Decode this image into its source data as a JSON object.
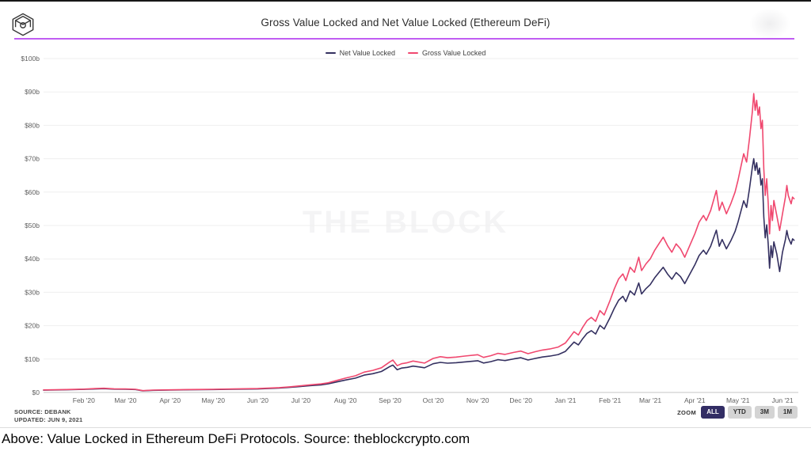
{
  "header": {
    "title": "Gross Value Locked and Net Value Locked (Ethereum DeFi)",
    "accent_color": "#c05df2"
  },
  "watermark": "THE BLOCK",
  "footer": {
    "source_line1": "SOURCE: DEBANK",
    "source_line2": "UPDATED: JUN 9, 2021",
    "zoom_label": "ZOOM",
    "zoom_buttons": [
      {
        "label": "ALL",
        "active": true
      },
      {
        "label": "YTD",
        "active": false
      },
      {
        "label": "3M",
        "active": false
      },
      {
        "label": "1M",
        "active": false
      }
    ]
  },
  "caption": "Above: Value Locked in Ethereum DeFi Protocols. Source: theblockcrypto.com",
  "chart_data": {
    "type": "line",
    "title": "Gross Value Locked and Net Value Locked (Ethereum DeFi)",
    "xlabel": "",
    "ylabel": "",
    "ylim": [
      0,
      100
    ],
    "grid": true,
    "legend_position": "top",
    "x_domain": [
      "2020-01-04",
      "2021-06-12"
    ],
    "y_ticks": [
      {
        "v": 0,
        "label": "$0"
      },
      {
        "v": 10,
        "label": "$10b"
      },
      {
        "v": 20,
        "label": "$20b"
      },
      {
        "v": 30,
        "label": "$30b"
      },
      {
        "v": 40,
        "label": "$40b"
      },
      {
        "v": 50,
        "label": "$50b"
      },
      {
        "v": 60,
        "label": "$60b"
      },
      {
        "v": 70,
        "label": "$70b"
      },
      {
        "v": 80,
        "label": "$80b"
      },
      {
        "v": 90,
        "label": "$90b"
      },
      {
        "v": 100,
        "label": "$100b"
      }
    ],
    "x_ticks": [
      {
        "date": "2020-02-01",
        "label": "Feb '20"
      },
      {
        "date": "2020-03-01",
        "label": "Mar '20"
      },
      {
        "date": "2020-04-01",
        "label": "Apr '20"
      },
      {
        "date": "2020-05-01",
        "label": "May '20"
      },
      {
        "date": "2020-06-01",
        "label": "Jun '20"
      },
      {
        "date": "2020-07-01",
        "label": "Jul '20"
      },
      {
        "date": "2020-08-01",
        "label": "Aug '20"
      },
      {
        "date": "2020-09-01",
        "label": "Sep '20"
      },
      {
        "date": "2020-10-01",
        "label": "Oct '20"
      },
      {
        "date": "2020-11-01",
        "label": "Nov '20"
      },
      {
        "date": "2020-12-01",
        "label": "Dec '20"
      },
      {
        "date": "2021-01-01",
        "label": "Jan '21"
      },
      {
        "date": "2021-02-01",
        "label": "Feb '21"
      },
      {
        "date": "2021-03-01",
        "label": "Mar '21"
      },
      {
        "date": "2021-04-01",
        "label": "Apr '21"
      },
      {
        "date": "2021-05-01",
        "label": "May '21"
      },
      {
        "date": "2021-06-01",
        "label": "Jun '21"
      }
    ],
    "dates": [
      "2020-01-04",
      "2020-01-17",
      "2020-02-01",
      "2020-02-09",
      "2020-02-15",
      "2020-02-22",
      "2020-03-01",
      "2020-03-08",
      "2020-03-13",
      "2020-03-20",
      "2020-04-01",
      "2020-04-15",
      "2020-05-01",
      "2020-05-15",
      "2020-06-01",
      "2020-06-16",
      "2020-06-24",
      "2020-07-01",
      "2020-07-08",
      "2020-07-15",
      "2020-07-20",
      "2020-07-26",
      "2020-08-01",
      "2020-08-08",
      "2020-08-14",
      "2020-08-20",
      "2020-08-26",
      "2020-09-01",
      "2020-09-03",
      "2020-09-06",
      "2020-09-09",
      "2020-09-13",
      "2020-09-17",
      "2020-09-21",
      "2020-09-25",
      "2020-10-01",
      "2020-10-06",
      "2020-10-11",
      "2020-10-17",
      "2020-10-23",
      "2020-11-01",
      "2020-11-05",
      "2020-11-10",
      "2020-11-15",
      "2020-11-20",
      "2020-11-26",
      "2020-12-01",
      "2020-12-06",
      "2020-12-11",
      "2020-12-16",
      "2020-12-21",
      "2020-12-27",
      "2021-01-01",
      "2021-01-04",
      "2021-01-07",
      "2021-01-10",
      "2021-01-13",
      "2021-01-16",
      "2021-01-19",
      "2021-01-22",
      "2021-01-25",
      "2021-01-28",
      "2021-02-01",
      "2021-02-04",
      "2021-02-07",
      "2021-02-10",
      "2021-02-12",
      "2021-02-15",
      "2021-02-18",
      "2021-02-21",
      "2021-02-23",
      "2021-02-26",
      "2021-03-01",
      "2021-03-04",
      "2021-03-07",
      "2021-03-10",
      "2021-03-13",
      "2021-03-16",
      "2021-03-19",
      "2021-03-22",
      "2021-03-25",
      "2021-03-28",
      "2021-04-01",
      "2021-04-04",
      "2021-04-07",
      "2021-04-09",
      "2021-04-12",
      "2021-04-14",
      "2021-04-16",
      "2021-04-18",
      "2021-04-20",
      "2021-04-23",
      "2021-04-26",
      "2021-04-29",
      "2021-05-01",
      "2021-05-03",
      "2021-05-05",
      "2021-05-07",
      "2021-05-09",
      "2021-05-11",
      "2021-05-12",
      "2021-05-13",
      "2021-05-14",
      "2021-05-15",
      "2021-05-16",
      "2021-05-17",
      "2021-05-18",
      "2021-05-19",
      "2021-05-20",
      "2021-05-21",
      "2021-05-22",
      "2021-05-23",
      "2021-05-24",
      "2021-05-25",
      "2021-05-26",
      "2021-05-28",
      "2021-05-30",
      "2021-06-01",
      "2021-06-03",
      "2021-06-04",
      "2021-06-05",
      "2021-06-07",
      "2021-06-08",
      "2021-06-09"
    ],
    "series": [
      {
        "name": "Net Value Locked",
        "color": "#343060",
        "values": [
          0.68,
          0.78,
          0.92,
          1.05,
          1.13,
          1.0,
          0.95,
          0.87,
          0.5,
          0.64,
          0.71,
          0.8,
          0.87,
          0.96,
          1.05,
          1.3,
          1.53,
          1.8,
          2.06,
          2.28,
          2.58,
          3.15,
          3.72,
          4.3,
          5.2,
          5.62,
          6.28,
          7.8,
          8.2,
          6.8,
          7.3,
          7.52,
          7.9,
          7.66,
          7.4,
          8.6,
          9.0,
          8.76,
          8.92,
          9.14,
          9.5,
          8.82,
          9.22,
          9.8,
          9.56,
          10.05,
          10.4,
          9.72,
          10.2,
          10.62,
          10.88,
          11.36,
          12.3,
          13.7,
          15.1,
          14.25,
          16.1,
          17.7,
          18.5,
          17.5,
          20.1,
          19.0,
          22.4,
          25.2,
          27.6,
          28.8,
          27.2,
          30.4,
          29.2,
          32.8,
          29.5,
          31.1,
          32.3,
          34.3,
          35.9,
          37.5,
          35.5,
          33.9,
          35.9,
          34.7,
          32.6,
          35.0,
          38.2,
          41.0,
          42.6,
          41.4,
          43.8,
          46.2,
          48.6,
          43.8,
          45.8,
          43.0,
          45.4,
          48.2,
          51.0,
          54.2,
          57.4,
          55.4,
          61.0,
          67.4,
          70.0,
          66.5,
          68.8,
          65.3,
          67.2,
          62.1,
          64.0,
          52.6,
          46.3,
          50.2,
          44.7,
          37.2,
          43.9,
          40.4,
          45.1,
          41.5,
          36.2,
          42.0,
          45.8,
          48.5,
          46.4,
          44.4,
          46.0,
          45.6
        ]
      },
      {
        "name": "Gross Value Locked",
        "color": "#f0486f",
        "values": [
          0.75,
          0.85,
          1.0,
          1.15,
          1.25,
          1.1,
          1.05,
          0.95,
          0.55,
          0.7,
          0.78,
          0.88,
          0.95,
          1.05,
          1.15,
          1.45,
          1.7,
          2.0,
          2.3,
          2.55,
          2.9,
          3.6,
          4.3,
          5.0,
          6.1,
          6.6,
          7.4,
          9.2,
          9.7,
          8.0,
          8.6,
          8.9,
          9.4,
          9.1,
          8.8,
          10.2,
          10.7,
          10.4,
          10.6,
          10.9,
          11.3,
          10.5,
          11.0,
          11.7,
          11.4,
          12.0,
          12.4,
          11.6,
          12.2,
          12.7,
          13.0,
          13.6,
          14.8,
          16.5,
          18.2,
          17.2,
          19.5,
          21.5,
          22.5,
          21.3,
          24.5,
          23.2,
          27.5,
          31.0,
          34.0,
          35.5,
          33.5,
          37.5,
          36.0,
          40.5,
          36.5,
          38.5,
          40.0,
          42.5,
          44.5,
          46.5,
          44.0,
          42.0,
          44.5,
          43.0,
          40.5,
          43.5,
          47.5,
          51.0,
          53.0,
          51.5,
          54.5,
          57.5,
          60.5,
          54.5,
          57.0,
          53.5,
          56.5,
          60.0,
          63.5,
          67.5,
          71.5,
          69.0,
          76.0,
          84.0,
          89.5,
          84.5,
          87.5,
          83.0,
          85.5,
          79.0,
          81.5,
          67.0,
          59.0,
          64.0,
          57.0,
          47.5,
          56.0,
          51.5,
          57.5,
          53.0,
          48.5,
          53.5,
          58.5,
          62.0,
          59.0,
          56.5,
          58.5,
          58.0
        ]
      }
    ]
  }
}
